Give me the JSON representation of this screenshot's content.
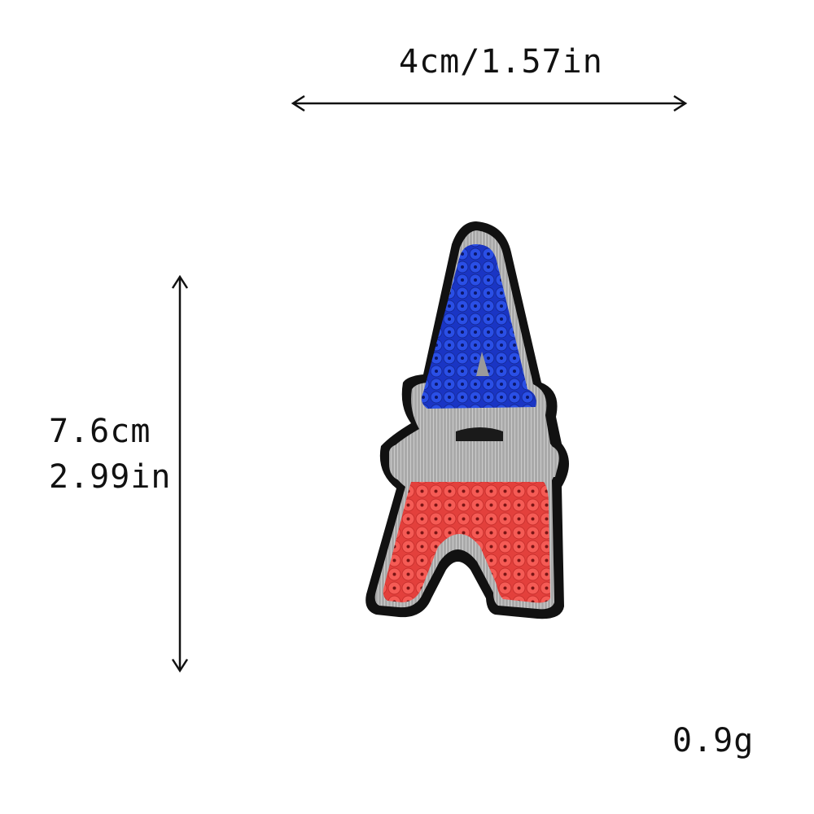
{
  "dimensions": {
    "width_text": "4cm/1.57in",
    "height_cm_text": "7.6cm",
    "height_in_text": "2.99in"
  },
  "weight_text": "0.9g",
  "colors": {
    "background": "#ffffff",
    "patch_outline": "#111111",
    "stitch_silver": "#b5b5b5",
    "sequin_blue": "#1f3fd0",
    "sequin_red": "#f0504a"
  },
  "patch_subject": "eiffel-tower-sequin-patch"
}
